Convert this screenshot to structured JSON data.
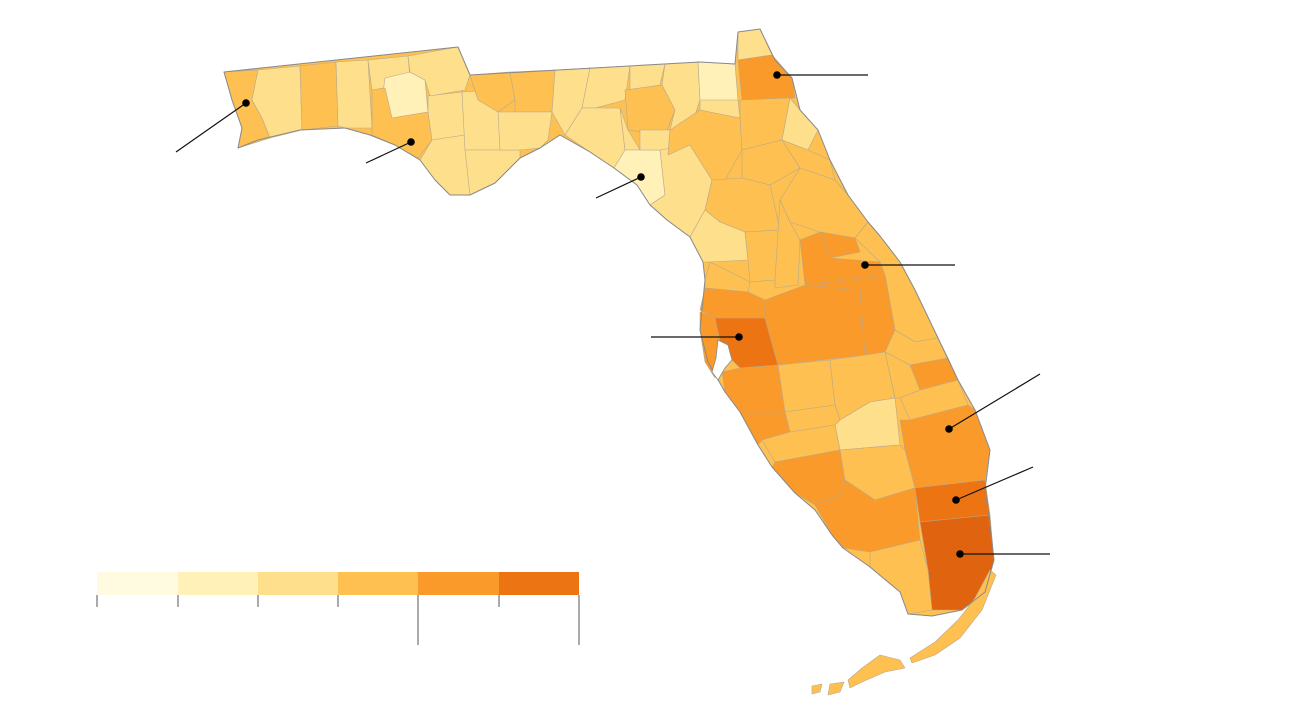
{
  "map": {
    "region": "Florida",
    "colors": {
      "c1": "#fffbe0",
      "c2": "#fff1b8",
      "c3": "#fedf8c",
      "c4": "#fdc051",
      "c5": "#fa9a2b",
      "c6": "#ed7413",
      "c7": "#e0630f",
      "outline": "#8a8a8a"
    },
    "callouts": [
      {
        "id": "pensacola"
      },
      {
        "id": "panama-city"
      },
      {
        "id": "gainesville"
      },
      {
        "id": "jacksonville"
      },
      {
        "id": "orlando"
      },
      {
        "id": "tampa"
      },
      {
        "id": "west-palm-beach"
      },
      {
        "id": "fort-lauderdale"
      },
      {
        "id": "miami"
      }
    ]
  },
  "legend": {
    "swatches": [
      "#fffbe0",
      "#fff1b8",
      "#fedf8c",
      "#fdc051",
      "#fa9a2b",
      "#ed7413"
    ]
  }
}
